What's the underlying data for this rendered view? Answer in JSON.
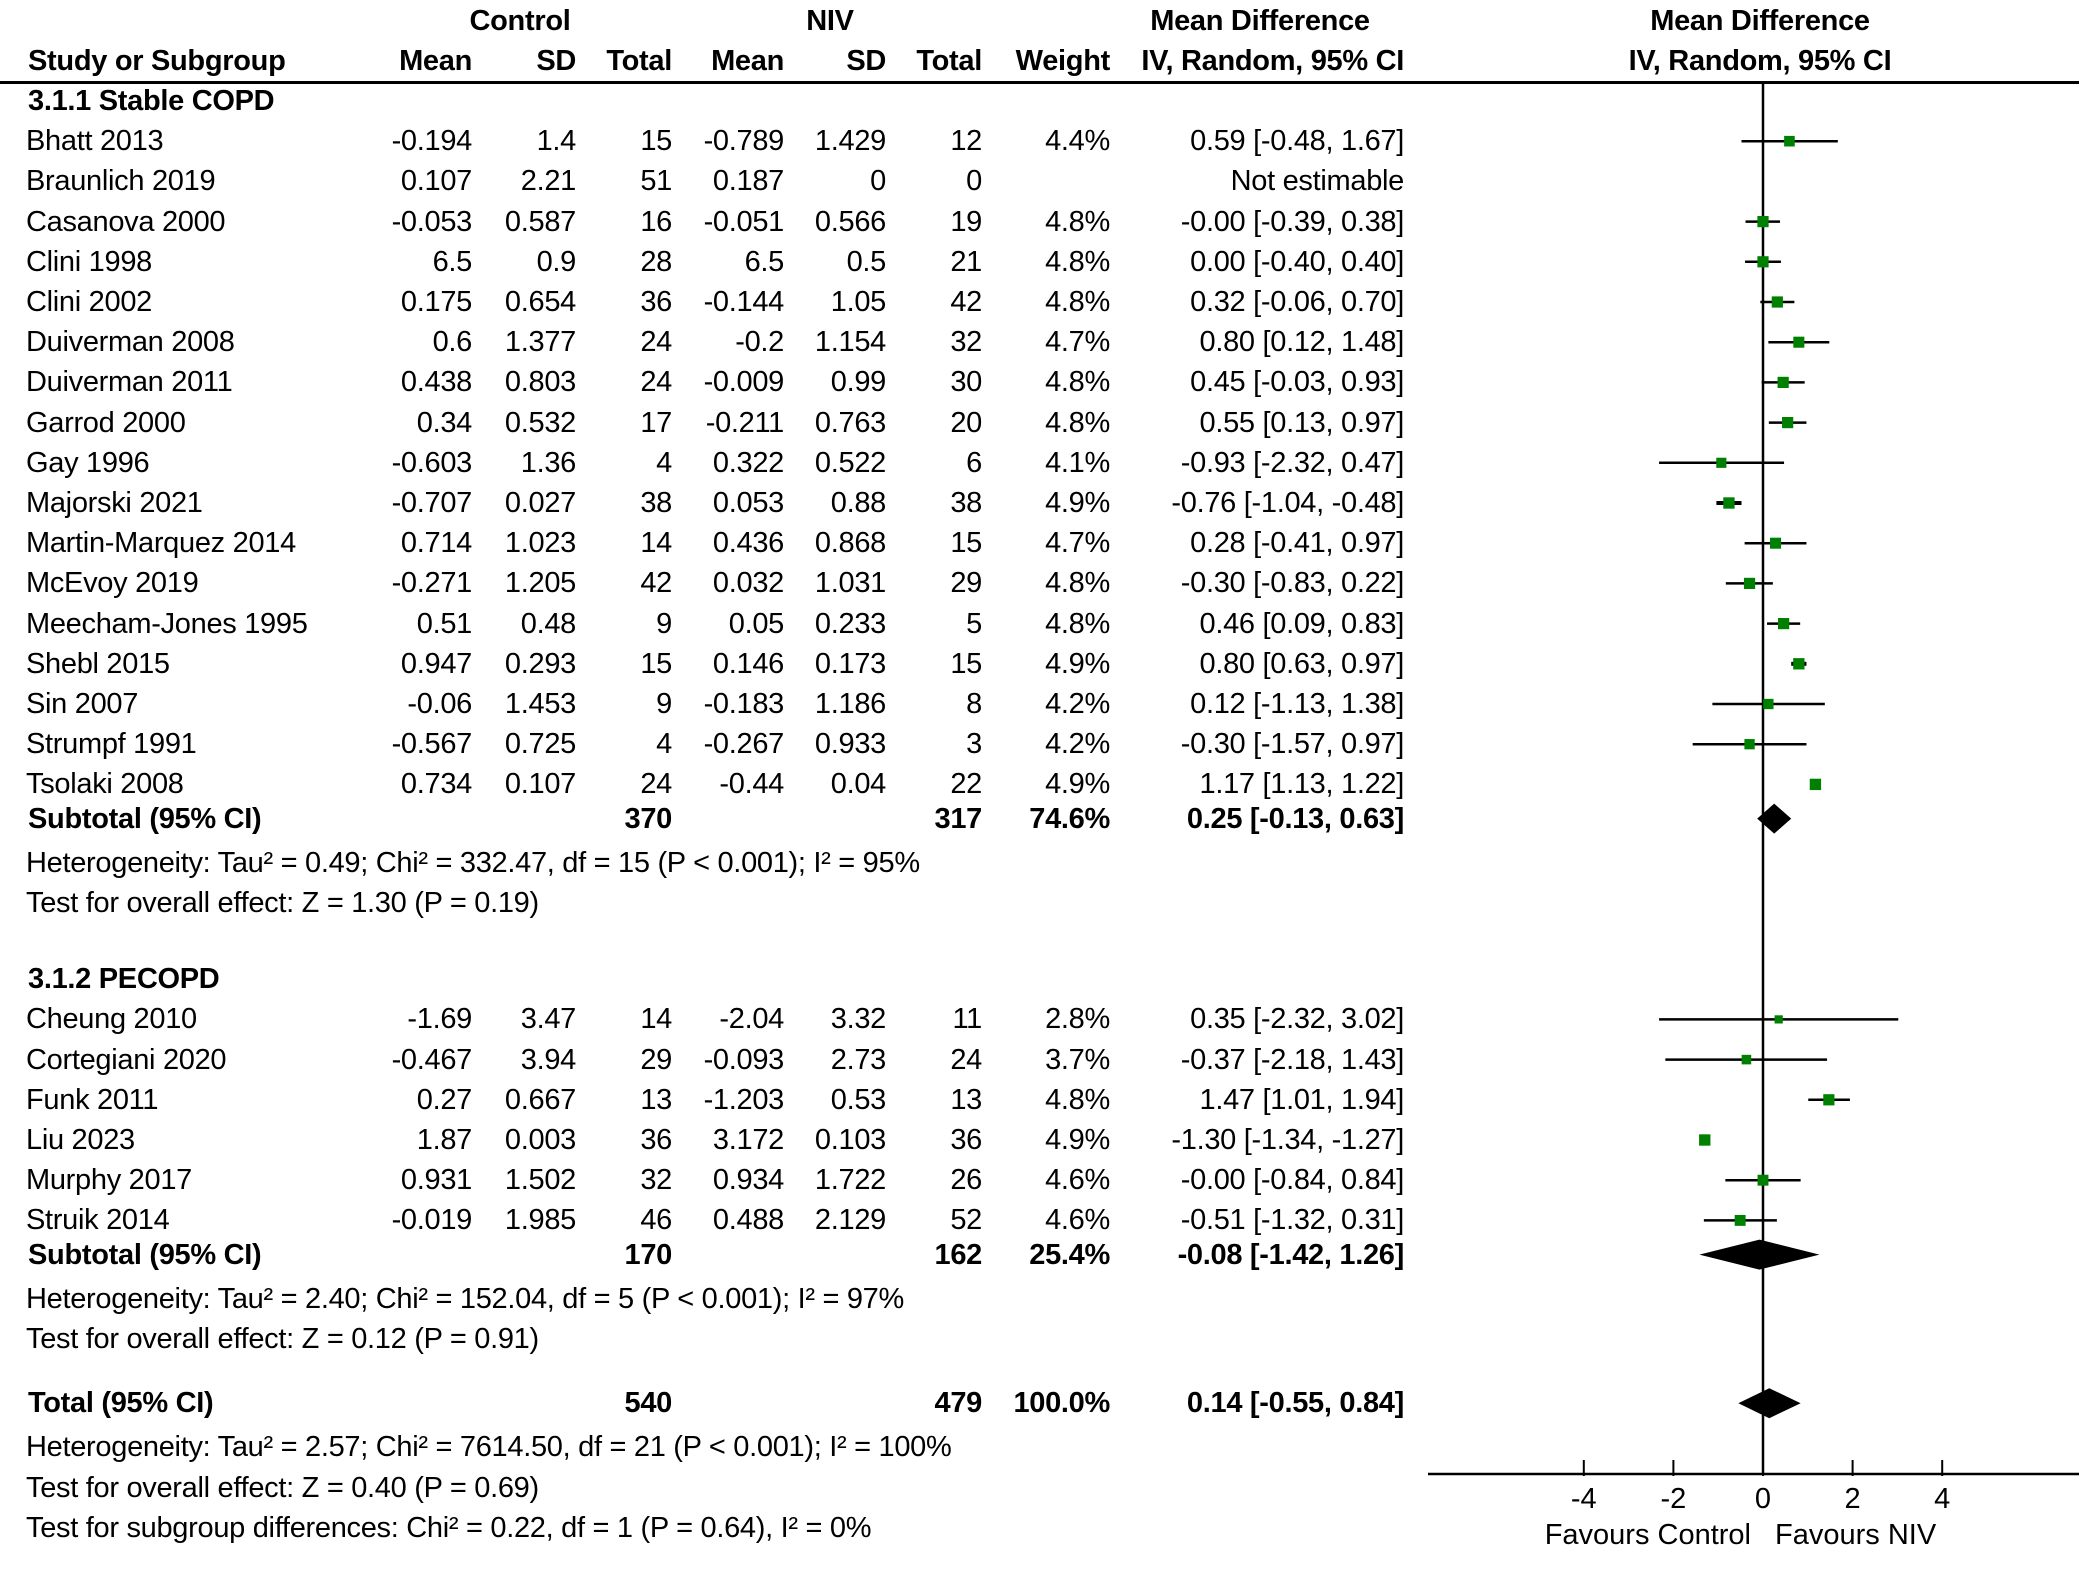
{
  "header": {
    "group_control": "Control",
    "group_niv": "NIV",
    "md_title": "Mean Difference",
    "plot_title": "Mean Difference",
    "columns": {
      "study": "Study or Subgroup",
      "c_mean": "Mean",
      "c_sd": "SD",
      "c_total": "Total",
      "n_mean": "Mean",
      "n_sd": "SD",
      "n_total": "Total",
      "weight": "Weight",
      "md": "IV, Random, 95% CI"
    },
    "plot_subtitle": "IV, Random, 95% CI"
  },
  "subgroups": [
    {
      "title": "3.1.1 Stable COPD",
      "studies": [
        {
          "study": "Bhatt 2013",
          "c_mean": "-0.194",
          "c_sd": "1.4",
          "c_total": "15",
          "n_mean": "-0.789",
          "n_sd": "1.429",
          "n_total": "12",
          "weight": "4.4%",
          "md": "0.59 [-0.48, 1.67]"
        },
        {
          "study": "Braunlich 2019",
          "c_mean": "0.107",
          "c_sd": "2.21",
          "c_total": "51",
          "n_mean": "0.187",
          "n_sd": "0",
          "n_total": "0",
          "weight": "",
          "md": "Not estimable"
        },
        {
          "study": "Casanova 2000",
          "c_mean": "-0.053",
          "c_sd": "0.587",
          "c_total": "16",
          "n_mean": "-0.051",
          "n_sd": "0.566",
          "n_total": "19",
          "weight": "4.8%",
          "md": "-0.00 [-0.39, 0.38]"
        },
        {
          "study": "Clini 1998",
          "c_mean": "6.5",
          "c_sd": "0.9",
          "c_total": "28",
          "n_mean": "6.5",
          "n_sd": "0.5",
          "n_total": "21",
          "weight": "4.8%",
          "md": "0.00 [-0.40, 0.40]"
        },
        {
          "study": "Clini 2002",
          "c_mean": "0.175",
          "c_sd": "0.654",
          "c_total": "36",
          "n_mean": "-0.144",
          "n_sd": "1.05",
          "n_total": "42",
          "weight": "4.8%",
          "md": "0.32 [-0.06, 0.70]"
        },
        {
          "study": "Duiverman 2008",
          "c_mean": "0.6",
          "c_sd": "1.377",
          "c_total": "24",
          "n_mean": "-0.2",
          "n_sd": "1.154",
          "n_total": "32",
          "weight": "4.7%",
          "md": "0.80 [0.12, 1.48]"
        },
        {
          "study": "Duiverman 2011",
          "c_mean": "0.438",
          "c_sd": "0.803",
          "c_total": "24",
          "n_mean": "-0.009",
          "n_sd": "0.99",
          "n_total": "30",
          "weight": "4.8%",
          "md": "0.45 [-0.03, 0.93]"
        },
        {
          "study": "Garrod 2000",
          "c_mean": "0.34",
          "c_sd": "0.532",
          "c_total": "17",
          "n_mean": "-0.211",
          "n_sd": "0.763",
          "n_total": "20",
          "weight": "4.8%",
          "md": "0.55 [0.13, 0.97]"
        },
        {
          "study": "Gay 1996",
          "c_mean": "-0.603",
          "c_sd": "1.36",
          "c_total": "4",
          "n_mean": "0.322",
          "n_sd": "0.522",
          "n_total": "6",
          "weight": "4.1%",
          "md": "-0.93 [-2.32, 0.47]"
        },
        {
          "study": "Majorski 2021",
          "c_mean": "-0.707",
          "c_sd": "0.027",
          "c_total": "38",
          "n_mean": "0.053",
          "n_sd": "0.88",
          "n_total": "38",
          "weight": "4.9%",
          "md": "-0.76 [-1.04, -0.48]"
        },
        {
          "study": "Martin-Marquez 2014",
          "c_mean": "0.714",
          "c_sd": "1.023",
          "c_total": "14",
          "n_mean": "0.436",
          "n_sd": "0.868",
          "n_total": "15",
          "weight": "4.7%",
          "md": "0.28 [-0.41, 0.97]"
        },
        {
          "study": "McEvoy 2019",
          "c_mean": "-0.271",
          "c_sd": "1.205",
          "c_total": "42",
          "n_mean": "0.032",
          "n_sd": "1.031",
          "n_total": "29",
          "weight": "4.8%",
          "md": "-0.30 [-0.83, 0.22]"
        },
        {
          "study": "Meecham-Jones 1995",
          "c_mean": "0.51",
          "c_sd": "0.48",
          "c_total": "9",
          "n_mean": "0.05",
          "n_sd": "0.233",
          "n_total": "5",
          "weight": "4.8%",
          "md": "0.46 [0.09, 0.83]"
        },
        {
          "study": "Shebl 2015",
          "c_mean": "0.947",
          "c_sd": "0.293",
          "c_total": "15",
          "n_mean": "0.146",
          "n_sd": "0.173",
          "n_total": "15",
          "weight": "4.9%",
          "md": "0.80 [0.63, 0.97]"
        },
        {
          "study": "Sin 2007",
          "c_mean": "-0.06",
          "c_sd": "1.453",
          "c_total": "9",
          "n_mean": "-0.183",
          "n_sd": "1.186",
          "n_total": "8",
          "weight": "4.2%",
          "md": "0.12 [-1.13, 1.38]"
        },
        {
          "study": "Strumpf 1991",
          "c_mean": "-0.567",
          "c_sd": "0.725",
          "c_total": "4",
          "n_mean": "-0.267",
          "n_sd": "0.933",
          "n_total": "3",
          "weight": "4.2%",
          "md": "-0.30 [-1.57, 0.97]"
        },
        {
          "study": "Tsolaki 2008",
          "c_mean": "0.734",
          "c_sd": "0.107",
          "c_total": "24",
          "n_mean": "-0.44",
          "n_sd": "0.04",
          "n_total": "22",
          "weight": "4.9%",
          "md": "1.17 [1.13, 1.22]"
        }
      ],
      "subtotal": {
        "label": "Subtotal (95% CI)",
        "c_total": "370",
        "n_total": "317",
        "weight": "74.6%",
        "md": "0.25 [-0.13, 0.63]"
      },
      "heterogeneity": "Heterogeneity: Tau² = 0.49; Chi² = 332.47, df = 15 (P < 0.001); I² = 95%",
      "overall": "Test for overall effect: Z = 1.30 (P = 0.19)"
    },
    {
      "title": "3.1.2 PECOPD",
      "studies": [
        {
          "study": "Cheung 2010",
          "c_mean": "-1.69",
          "c_sd": "3.47",
          "c_total": "14",
          "n_mean": "-2.04",
          "n_sd": "3.32",
          "n_total": "11",
          "weight": "2.8%",
          "md": "0.35 [-2.32, 3.02]"
        },
        {
          "study": "Cortegiani 2020",
          "c_mean": "-0.467",
          "c_sd": "3.94",
          "c_total": "29",
          "n_mean": "-0.093",
          "n_sd": "2.73",
          "n_total": "24",
          "weight": "3.7%",
          "md": "-0.37 [-2.18, 1.43]"
        },
        {
          "study": "Funk 2011",
          "c_mean": "0.27",
          "c_sd": "0.667",
          "c_total": "13",
          "n_mean": "-1.203",
          "n_sd": "0.53",
          "n_total": "13",
          "weight": "4.8%",
          "md": "1.47 [1.01, 1.94]"
        },
        {
          "study": "Liu 2023",
          "c_mean": "1.87",
          "c_sd": "0.003",
          "c_total": "36",
          "n_mean": "3.172",
          "n_sd": "0.103",
          "n_total": "36",
          "weight": "4.9%",
          "md": "-1.30 [-1.34, -1.27]"
        },
        {
          "study": "Murphy 2017",
          "c_mean": "0.931",
          "c_sd": "1.502",
          "c_total": "32",
          "n_mean": "0.934",
          "n_sd": "1.722",
          "n_total": "26",
          "weight": "4.6%",
          "md": "-0.00 [-0.84, 0.84]"
        },
        {
          "study": "Struik 2014",
          "c_mean": "-0.019",
          "c_sd": "1.985",
          "c_total": "46",
          "n_mean": "0.488",
          "n_sd": "2.129",
          "n_total": "52",
          "weight": "4.6%",
          "md": "-0.51 [-1.32, 0.31]"
        }
      ],
      "subtotal": {
        "label": "Subtotal (95% CI)",
        "c_total": "170",
        "n_total": "162",
        "weight": "25.4%",
        "md": "-0.08 [-1.42, 1.26]"
      },
      "heterogeneity": "Heterogeneity: Tau² = 2.40; Chi² = 152.04, df = 5 (P < 0.001); I² = 97%",
      "overall": "Test for overall effect: Z = 0.12 (P = 0.91)"
    }
  ],
  "total": {
    "label": "Total (95% CI)",
    "c_total": "540",
    "n_total": "479",
    "weight": "100.0%",
    "md": "0.14 [-0.55, 0.84]",
    "heterogeneity": "Heterogeneity: Tau² = 2.57; Chi² = 7614.50, df = 21 (P < 0.001); I² = 100%",
    "overall": "Test for overall effect: Z = 0.40 (P = 0.69)",
    "subgroup_diff": "Test for subgroup differences: Chi² = 0.22, df = 1 (P = 0.64), I² = 0%"
  },
  "colors": {
    "study_marker": "#008000",
    "line": "#000000",
    "diamond": "#000000"
  },
  "chart_data": {
    "type": "scatter",
    "subtype": "forest",
    "title": "Mean Difference",
    "subtitle": "IV, Random, 95% CI",
    "xlabel_left": "Favours Control",
    "xlabel_right": "Favours NIV",
    "xlim": [
      -5.5,
      7
    ],
    "xticks": [
      -4,
      -2,
      0,
      2,
      4
    ],
    "xtick_labels": [
      "-4",
      "-2",
      "0",
      "2",
      "4"
    ],
    "reference_line": 0,
    "grid": false,
    "studies": [
      {
        "name": "Bhatt 2013",
        "group": "3.1.1 Stable COPD",
        "md": 0.59,
        "lo": -0.48,
        "hi": 1.67,
        "weight": 4.4
      },
      {
        "name": "Braunlich 2019",
        "group": "3.1.1 Stable COPD",
        "md": null,
        "lo": null,
        "hi": null,
        "weight": null
      },
      {
        "name": "Casanova 2000",
        "group": "3.1.1 Stable COPD",
        "md": -0.0,
        "lo": -0.39,
        "hi": 0.38,
        "weight": 4.8
      },
      {
        "name": "Clini 1998",
        "group": "3.1.1 Stable COPD",
        "md": 0.0,
        "lo": -0.4,
        "hi": 0.4,
        "weight": 4.8
      },
      {
        "name": "Clini 2002",
        "group": "3.1.1 Stable COPD",
        "md": 0.32,
        "lo": -0.06,
        "hi": 0.7,
        "weight": 4.8
      },
      {
        "name": "Duiverman 2008",
        "group": "3.1.1 Stable COPD",
        "md": 0.8,
        "lo": 0.12,
        "hi": 1.48,
        "weight": 4.7
      },
      {
        "name": "Duiverman 2011",
        "group": "3.1.1 Stable COPD",
        "md": 0.45,
        "lo": -0.03,
        "hi": 0.93,
        "weight": 4.8
      },
      {
        "name": "Garrod 2000",
        "group": "3.1.1 Stable COPD",
        "md": 0.55,
        "lo": 0.13,
        "hi": 0.97,
        "weight": 4.8
      },
      {
        "name": "Gay 1996",
        "group": "3.1.1 Stable COPD",
        "md": -0.93,
        "lo": -2.32,
        "hi": 0.47,
        "weight": 4.1
      },
      {
        "name": "Majorski 2021",
        "group": "3.1.1 Stable COPD",
        "md": -0.76,
        "lo": -1.04,
        "hi": -0.48,
        "weight": 4.9
      },
      {
        "name": "Martin-Marquez 2014",
        "group": "3.1.1 Stable COPD",
        "md": 0.28,
        "lo": -0.41,
        "hi": 0.97,
        "weight": 4.7
      },
      {
        "name": "McEvoy 2019",
        "group": "3.1.1 Stable COPD",
        "md": -0.3,
        "lo": -0.83,
        "hi": 0.22,
        "weight": 4.8
      },
      {
        "name": "Meecham-Jones 1995",
        "group": "3.1.1 Stable COPD",
        "md": 0.46,
        "lo": 0.09,
        "hi": 0.83,
        "weight": 4.8
      },
      {
        "name": "Shebl 2015",
        "group": "3.1.1 Stable COPD",
        "md": 0.8,
        "lo": 0.63,
        "hi": 0.97,
        "weight": 4.9
      },
      {
        "name": "Sin 2007",
        "group": "3.1.1 Stable COPD",
        "md": 0.12,
        "lo": -1.13,
        "hi": 1.38,
        "weight": 4.2
      },
      {
        "name": "Strumpf 1991",
        "group": "3.1.1 Stable COPD",
        "md": -0.3,
        "lo": -1.57,
        "hi": 0.97,
        "weight": 4.2
      },
      {
        "name": "Tsolaki 2008",
        "group": "3.1.1 Stable COPD",
        "md": 1.17,
        "lo": 1.13,
        "hi": 1.22,
        "weight": 4.9
      },
      {
        "name": "Cheung 2010",
        "group": "3.1.2 PECOPD",
        "md": 0.35,
        "lo": -2.32,
        "hi": 3.02,
        "weight": 2.8
      },
      {
        "name": "Cortegiani 2020",
        "group": "3.1.2 PECOPD",
        "md": -0.37,
        "lo": -2.18,
        "hi": 1.43,
        "weight": 3.7
      },
      {
        "name": "Funk 2011",
        "group": "3.1.2 PECOPD",
        "md": 1.47,
        "lo": 1.01,
        "hi": 1.94,
        "weight": 4.8
      },
      {
        "name": "Liu 2023",
        "group": "3.1.2 PECOPD",
        "md": -1.3,
        "lo": -1.34,
        "hi": -1.27,
        "weight": 4.9
      },
      {
        "name": "Murphy 2017",
        "group": "3.1.2 PECOPD",
        "md": -0.0,
        "lo": -0.84,
        "hi": 0.84,
        "weight": 4.6
      },
      {
        "name": "Struik 2014",
        "group": "3.1.2 PECOPD",
        "md": -0.51,
        "lo": -1.32,
        "hi": 0.31,
        "weight": 4.6
      }
    ],
    "pooled": [
      {
        "name": "Subtotal 3.1.1 Stable COPD",
        "md": 0.25,
        "lo": -0.13,
        "hi": 0.63
      },
      {
        "name": "Subtotal 3.1.2 PECOPD",
        "md": -0.08,
        "lo": -1.42,
        "hi": 1.26
      },
      {
        "name": "Total",
        "md": 0.14,
        "lo": -0.55,
        "hi": 0.84
      }
    ]
  }
}
